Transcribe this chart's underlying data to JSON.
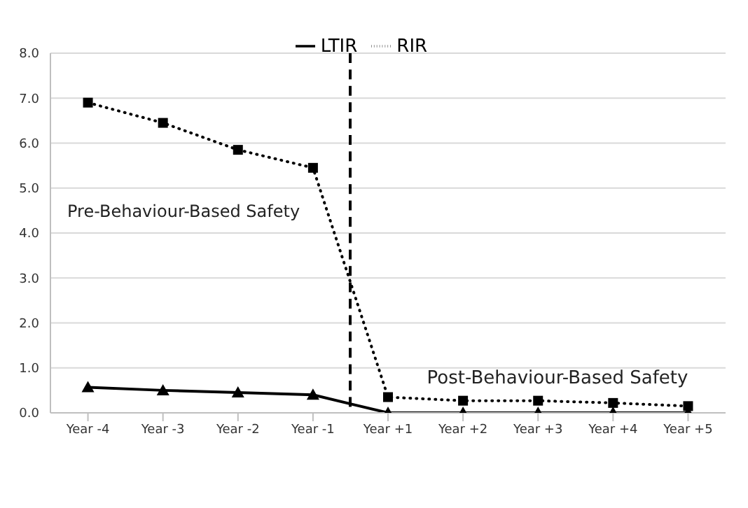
{
  "chart_data": {
    "type": "line",
    "categories": [
      "Year -4",
      "Year -3",
      "Year -2",
      "Year -1",
      "Year +1",
      "Year +2",
      "Year +3",
      "Year +4",
      "Year +5"
    ],
    "series": [
      {
        "name": "LTIR",
        "color": "#000000",
        "marker": "triangle",
        "line_style": "solid",
        "values": [
          0.57,
          0.5,
          0.45,
          0.4,
          0,
          0,
          0,
          0,
          0
        ]
      },
      {
        "name": "RIR",
        "color": "#000000",
        "marker": "square",
        "line_style": "dotted",
        "values": [
          6.9,
          6.45,
          5.85,
          5.45,
          0.35,
          0.27,
          0.27,
          0.22,
          0.15
        ]
      }
    ],
    "ylim": [
      0,
      8
    ],
    "yticks": [
      {
        "value": 0,
        "label": "0.0"
      },
      {
        "value": 1,
        "label": "1.0"
      },
      {
        "value": 2,
        "label": "2.0"
      },
      {
        "value": 3,
        "label": "3.0"
      },
      {
        "value": 4,
        "label": "4.0"
      },
      {
        "value": 5,
        "label": "5.0"
      },
      {
        "value": 6,
        "label": "6.0"
      },
      {
        "value": 7,
        "label": "7.0"
      },
      {
        "value": 8,
        "label": "8.0"
      }
    ],
    "grid": "y",
    "legend": "top",
    "annotations": [
      "Pre-Behaviour-Based Safety",
      "Post-Behaviour-Based Safety"
    ]
  }
}
